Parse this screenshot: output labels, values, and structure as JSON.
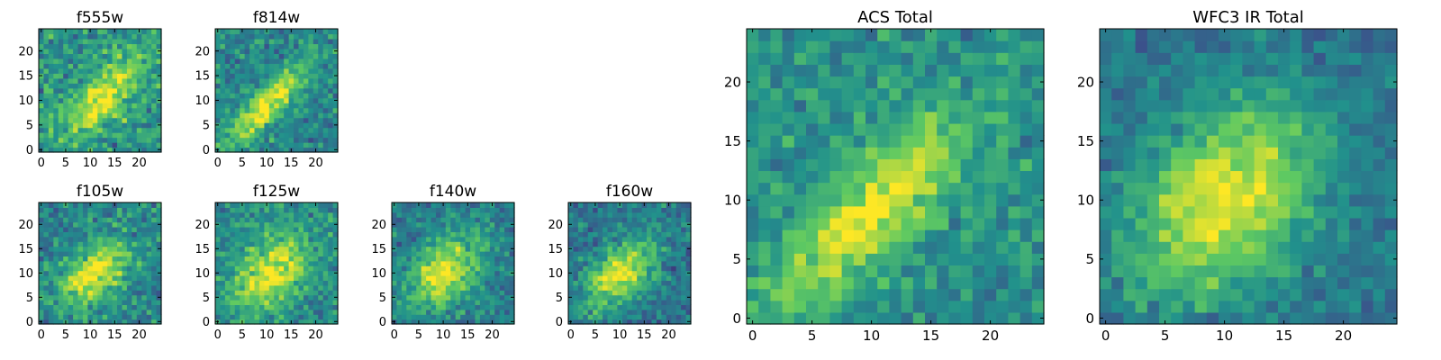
{
  "colormap": {
    "name": "viridis",
    "stops": [
      "#440154",
      "#3b528b",
      "#21918c",
      "#5ec962",
      "#fde725"
    ]
  },
  "chart_data": [
    {
      "type": "heatmap",
      "title": "f555w",
      "grid_size": 25,
      "xlim": [
        0,
        24
      ],
      "ylim": [
        0,
        24
      ],
      "xticks": [
        "0",
        "5",
        "10",
        "15",
        "20"
      ],
      "yticks": [
        "0",
        "5",
        "10",
        "15",
        "20"
      ],
      "colormap": "viridis",
      "blob_center": [
        13,
        11
      ],
      "blob_sigma": [
        7,
        3
      ],
      "blob_angle_deg": 45,
      "background_level": 0.52,
      "noise_level": 0.22,
      "seed": 11
    },
    {
      "type": "heatmap",
      "title": "f814w",
      "grid_size": 25,
      "xlim": [
        0,
        24
      ],
      "ylim": [
        0,
        24
      ],
      "xticks": [
        "0",
        "5",
        "10",
        "15",
        "20"
      ],
      "yticks": [
        "0",
        "5",
        "10",
        "15",
        "20"
      ],
      "colormap": "viridis",
      "blob_center": [
        10,
        9
      ],
      "blob_sigma": [
        8,
        2.2
      ],
      "blob_angle_deg": 45,
      "background_level": 0.46,
      "noise_level": 0.18,
      "seed": 23
    },
    {
      "type": "heatmap",
      "title": "f105w",
      "grid_size": 25,
      "xlim": [
        0,
        24
      ],
      "ylim": [
        0,
        24
      ],
      "xticks": [
        "0",
        "5",
        "10",
        "15",
        "20"
      ],
      "yticks": [
        "0",
        "5",
        "10",
        "15",
        "20"
      ],
      "colormap": "viridis",
      "blob_center": [
        11,
        10
      ],
      "blob_sigma": [
        6,
        3.5
      ],
      "blob_angle_deg": 45,
      "background_level": 0.45,
      "noise_level": 0.2,
      "seed": 37
    },
    {
      "type": "heatmap",
      "title": "f125w",
      "grid_size": 25,
      "xlim": [
        0,
        24
      ],
      "ylim": [
        0,
        24
      ],
      "xticks": [
        "0",
        "5",
        "10",
        "15",
        "20"
      ],
      "yticks": [
        "0",
        "5",
        "10",
        "15",
        "20"
      ],
      "colormap": "viridis",
      "blob_center": [
        11,
        10
      ],
      "blob_sigma": [
        6.5,
        4
      ],
      "blob_angle_deg": 45,
      "background_level": 0.48,
      "noise_level": 0.18,
      "seed": 41
    },
    {
      "type": "heatmap",
      "title": "f140w",
      "grid_size": 25,
      "xlim": [
        0,
        24
      ],
      "ylim": [
        0,
        24
      ],
      "xticks": [
        "0",
        "5",
        "10",
        "15",
        "20"
      ],
      "yticks": [
        "0",
        "5",
        "10",
        "15",
        "20"
      ],
      "colormap": "viridis",
      "blob_center": [
        10,
        10
      ],
      "blob_sigma": [
        6,
        4
      ],
      "blob_angle_deg": 45,
      "background_level": 0.42,
      "noise_level": 0.17,
      "seed": 53
    },
    {
      "type": "heatmap",
      "title": "f160w",
      "grid_size": 25,
      "xlim": [
        0,
        24
      ],
      "ylim": [
        0,
        24
      ],
      "xticks": [
        "0",
        "5",
        "10",
        "15",
        "20"
      ],
      "yticks": [
        "0",
        "5",
        "10",
        "15",
        "20"
      ],
      "colormap": "viridis",
      "blob_center": [
        10,
        10
      ],
      "blob_sigma": [
        6,
        3.5
      ],
      "blob_angle_deg": 45,
      "background_level": 0.4,
      "noise_level": 0.17,
      "seed": 67
    },
    {
      "type": "heatmap",
      "title": "ACS Total",
      "grid_size": 25,
      "xlim": [
        0,
        24
      ],
      "ylim": [
        0,
        24
      ],
      "xticks": [
        "0",
        "5",
        "10",
        "15",
        "20"
      ],
      "yticks": [
        "0",
        "5",
        "10",
        "15",
        "20"
      ],
      "colormap": "viridis",
      "blob_center": [
        10,
        9
      ],
      "blob_sigma": [
        8,
        2.5
      ],
      "blob_angle_deg": 45,
      "background_level": 0.5,
      "noise_level": 0.16,
      "seed": 79
    },
    {
      "type": "heatmap",
      "title": "WFC3 IR Total",
      "grid_size": 25,
      "xlim": [
        0,
        24
      ],
      "ylim": [
        0,
        24
      ],
      "xticks": [
        "0",
        "5",
        "10",
        "15",
        "20"
      ],
      "yticks": [
        "0",
        "5",
        "10",
        "15",
        "20"
      ],
      "colormap": "viridis",
      "blob_center": [
        10,
        10
      ],
      "blob_sigma": [
        6.5,
        4.5
      ],
      "blob_angle_deg": 45,
      "background_level": 0.38,
      "noise_level": 0.13,
      "seed": 97
    }
  ]
}
